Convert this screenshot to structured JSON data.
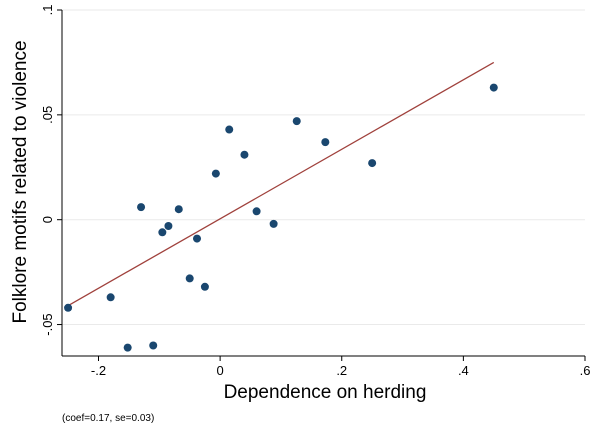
{
  "chart_data": {
    "type": "scatter",
    "xlabel": "Dependence on herding",
    "ylabel": "Folklore motifs related to violence",
    "note": "(coef=0.17, se=0.03)",
    "xlim": [
      -0.26,
      0.6
    ],
    "ylim": [
      -0.065,
      0.1
    ],
    "x_ticks": [
      {
        "value": -0.2,
        "label": "-.2"
      },
      {
        "value": 0.0,
        "label": "0"
      },
      {
        "value": 0.2,
        "label": ".2"
      },
      {
        "value": 0.4,
        "label": ".4"
      },
      {
        "value": 0.6,
        "label": ".6"
      }
    ],
    "y_ticks": [
      {
        "value": -0.05,
        "label": "-.05"
      },
      {
        "value": 0.0,
        "label": "0"
      },
      {
        "value": 0.05,
        "label": ".05"
      },
      {
        "value": 0.1,
        "label": ".1"
      }
    ],
    "grid": true,
    "colors": {
      "points": "#1a476f",
      "fit_line": "#a0413c",
      "grid": "#eaeaea"
    },
    "points": [
      {
        "x": -0.25,
        "y": -0.042
      },
      {
        "x": -0.18,
        "y": -0.037
      },
      {
        "x": -0.152,
        "y": -0.061
      },
      {
        "x": -0.11,
        "y": -0.06
      },
      {
        "x": -0.13,
        "y": 0.006
      },
      {
        "x": -0.095,
        "y": -0.006
      },
      {
        "x": -0.085,
        "y": -0.003
      },
      {
        "x": -0.068,
        "y": 0.005
      },
      {
        "x": -0.05,
        "y": -0.028
      },
      {
        "x": -0.038,
        "y": -0.009
      },
      {
        "x": -0.025,
        "y": -0.032
      },
      {
        "x": -0.007,
        "y": 0.022
      },
      {
        "x": 0.015,
        "y": 0.043
      },
      {
        "x": 0.04,
        "y": 0.031
      },
      {
        "x": 0.06,
        "y": 0.004
      },
      {
        "x": 0.088,
        "y": -0.002
      },
      {
        "x": 0.126,
        "y": 0.047
      },
      {
        "x": 0.173,
        "y": 0.037
      },
      {
        "x": 0.25,
        "y": 0.027
      },
      {
        "x": 0.45,
        "y": 0.063
      }
    ],
    "fit_line": {
      "x": [
        -0.25,
        0.45
      ],
      "y": [
        -0.041,
        0.075
      ]
    }
  }
}
